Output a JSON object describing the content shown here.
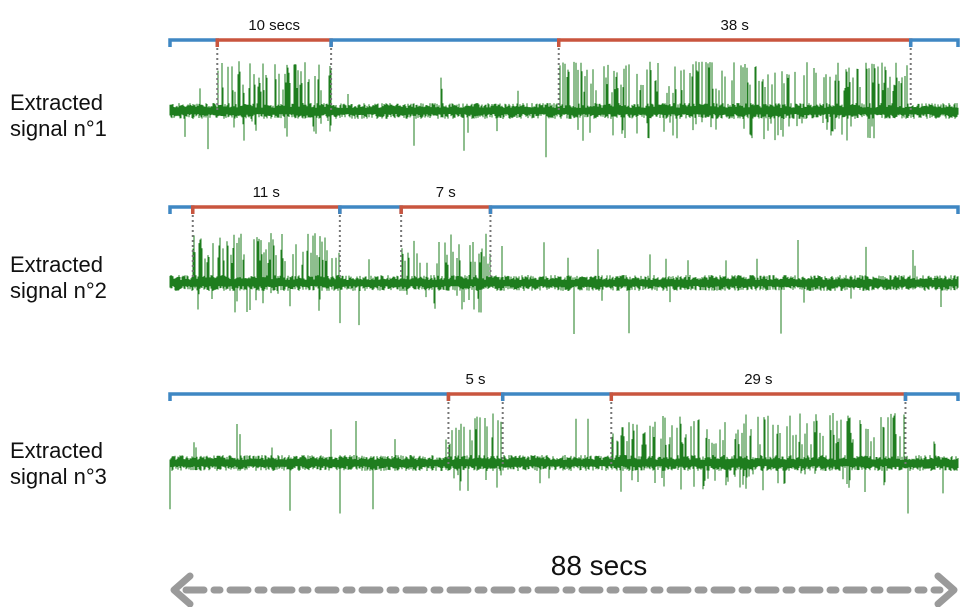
{
  "colors": {
    "signal": "#1e7d1e",
    "inactive": "#3f87c3",
    "active": "#c9553e",
    "arrow": "#9a9a9a",
    "marker": "#777777"
  },
  "rows": [
    {
      "label_line1": "Extracted",
      "label_line2": "signal n°1",
      "segments": [
        {
          "state": "inactive",
          "start": 0,
          "end": 2.7
        },
        {
          "state": "active",
          "start": 2.7,
          "end": 9.2,
          "label": "10 secs"
        },
        {
          "state": "inactive",
          "start": 9.2,
          "end": 22.2
        },
        {
          "state": "active",
          "start": 22.2,
          "end": 42.3,
          "label": "38 s"
        },
        {
          "state": "inactive",
          "start": 42.3,
          "end": 45.0
        }
      ]
    },
    {
      "label_line1": "Extracted",
      "label_line2": "signal n°2",
      "segments": [
        {
          "state": "inactive",
          "start": 0,
          "end": 1.3
        },
        {
          "state": "active",
          "start": 1.3,
          "end": 9.7,
          "label": "11 s"
        },
        {
          "state": "inactive",
          "start": 9.7,
          "end": 13.2
        },
        {
          "state": "active",
          "start": 13.2,
          "end": 18.3,
          "label": "7 s"
        },
        {
          "state": "inactive",
          "start": 18.3,
          "end": 45.0
        }
      ]
    },
    {
      "label_line1": "Extracted",
      "label_line2": "signal n°3",
      "segments": [
        {
          "state": "inactive",
          "start": 0,
          "end": 15.9
        },
        {
          "state": "active",
          "start": 15.9,
          "end": 19.0,
          "label": "5 s"
        },
        {
          "state": "inactive",
          "start": 19.0,
          "end": 25.2
        },
        {
          "state": "active",
          "start": 25.2,
          "end": 42.0,
          "label": "29 s"
        },
        {
          "state": "inactive",
          "start": 42.0,
          "end": 45.0
        }
      ]
    }
  ],
  "total_duration": "88 secs"
}
